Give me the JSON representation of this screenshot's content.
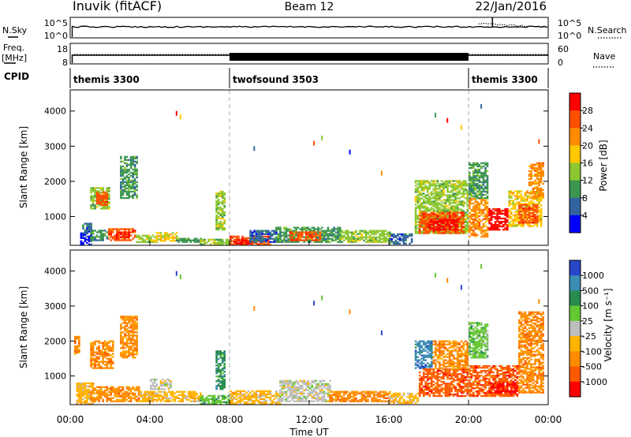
{
  "header": {
    "title": "Inuvik (fitACF)",
    "beam": "Beam 12",
    "date": "22/Jan/2016"
  },
  "top_panels": {
    "nsky_label": "N.Sky",
    "nsky_ticks": [
      "10^5",
      "10^0"
    ],
    "nsearch_label": "N.Search",
    "nsearch_ticks": [
      "10^5",
      "10^0"
    ],
    "freq_label": "Freq.",
    "freq_unit": "[MHz]",
    "freq_ticks": [
      "18",
      "8"
    ],
    "nave_label": "Nave",
    "nave_ticks": [
      "60",
      "0"
    ],
    "cpid_label": "CPID",
    "cpid_segments": [
      {
        "name": "themis 3300",
        "start": 0,
        "end": 8
      },
      {
        "name": "twofsound 3503",
        "start": 8,
        "end": 20
      },
      {
        "name": "themis 3300",
        "start": 20,
        "end": 24
      }
    ]
  },
  "x_axis": {
    "label": "Time UT",
    "ticks": [
      "00:00",
      "04:00",
      "08:00",
      "12:00",
      "16:00",
      "20:00",
      "00:00"
    ]
  },
  "power_panel": {
    "ylabel": "Slant Range [km]",
    "yticks": [
      "1000",
      "2000",
      "3000",
      "4000"
    ],
    "colorbar_label": "Power [dB]",
    "colorbar_ticks": [
      "28",
      "24",
      "20",
      "16",
      "12",
      "8",
      "4"
    ],
    "colors": [
      "#ff0000",
      "#ff5000",
      "#ff8c00",
      "#ffc800",
      "#8cc832",
      "#3c9650",
      "#3264a0",
      "#0000ff"
    ]
  },
  "velocity_panel": {
    "ylabel": "Slant Range [km]",
    "yticks": [
      "1000",
      "2000",
      "3000",
      "4000"
    ],
    "colorbar_label": "Velocity [m s⁻¹]",
    "colorbar_ticks": [
      "1000",
      "500",
      "100",
      "25",
      "-25",
      "-100",
      "-500",
      "-1000"
    ],
    "colors": [
      "#2846c8",
      "#3c8cb4",
      "#288c50",
      "#64c832",
      "#bebebe",
      "#ffb400",
      "#ff8c00",
      "#ff5a00",
      "#ff0000"
    ]
  },
  "chart_data": {
    "type": "heatmap",
    "title": "Inuvik (fitACF)",
    "xlabel": "Time UT",
    "ylabel": "Slant Range [km]",
    "xlim": [
      0,
      24
    ],
    "ylim": [
      180,
      4600
    ],
    "vertical_lines_hours": [
      8,
      20
    ],
    "power_patches": [
      {
        "t0": 0.5,
        "t1": 1.0,
        "r0": 180,
        "r1": 500,
        "c": 7
      },
      {
        "t0": 0.6,
        "t1": 1.0,
        "r0": 500,
        "r1": 800,
        "c": 6
      },
      {
        "t0": 1.0,
        "t1": 1.9,
        "r0": 300,
        "r1": 600,
        "c": 5
      },
      {
        "t0": 1.9,
        "t1": 3.3,
        "r0": 300,
        "r1": 650,
        "c": 1
      },
      {
        "t0": 2.2,
        "t1": 3.0,
        "r0": 380,
        "r1": 560,
        "c": 0
      },
      {
        "t0": 3.3,
        "t1": 4.3,
        "r0": 250,
        "r1": 450,
        "c": 4
      },
      {
        "t0": 4.3,
        "t1": 5.3,
        "r0": 280,
        "r1": 520,
        "c": 3
      },
      {
        "t0": 5.3,
        "t1": 6.5,
        "r0": 250,
        "r1": 380,
        "c": 5
      },
      {
        "t0": 6.5,
        "t1": 8.0,
        "r0": 180,
        "r1": 350,
        "c": 4
      },
      {
        "t0": 7.3,
        "t1": 7.7,
        "r0": 600,
        "r1": 1700,
        "c": 4
      },
      {
        "t0": 8.0,
        "t1": 10.0,
        "r0": 180,
        "r1": 420,
        "c": 1
      },
      {
        "t0": 8.2,
        "t1": 9.0,
        "r0": 200,
        "r1": 330,
        "c": 0
      },
      {
        "t0": 9.0,
        "t1": 10.5,
        "r0": 250,
        "r1": 600,
        "c": 6
      },
      {
        "t0": 10.3,
        "t1": 13.5,
        "r0": 250,
        "r1": 700,
        "c": 5
      },
      {
        "t0": 11.0,
        "t1": 12.5,
        "r0": 300,
        "r1": 550,
        "c": 1
      },
      {
        "t0": 13.5,
        "t1": 16.0,
        "r0": 250,
        "r1": 600,
        "c": 4
      },
      {
        "t0": 16.0,
        "t1": 17.2,
        "r0": 200,
        "r1": 500,
        "c": 6
      },
      {
        "t0": 1.0,
        "t1": 2.0,
        "r0": 1200,
        "r1": 1800,
        "c": 4
      },
      {
        "t0": 1.3,
        "t1": 1.9,
        "r0": 1300,
        "r1": 1700,
        "c": 1
      },
      {
        "t0": 2.5,
        "t1": 3.4,
        "r0": 1500,
        "r1": 2700,
        "c": 5
      },
      {
        "t0": 17.3,
        "t1": 20.0,
        "r0": 500,
        "r1": 2000,
        "c": 4
      },
      {
        "t0": 17.5,
        "t1": 19.8,
        "r0": 500,
        "r1": 1100,
        "c": 1
      },
      {
        "t0": 18.0,
        "t1": 19.5,
        "r0": 600,
        "r1": 900,
        "c": 0
      },
      {
        "t0": 20.0,
        "t1": 21.0,
        "r0": 400,
        "r1": 1500,
        "c": 2
      },
      {
        "t0": 20.0,
        "t1": 21.0,
        "r0": 1500,
        "r1": 2500,
        "c": 5
      },
      {
        "t0": 21.0,
        "t1": 22.0,
        "r0": 600,
        "r1": 1200,
        "c": 0
      },
      {
        "t0": 22.0,
        "t1": 23.7,
        "r0": 700,
        "r1": 1700,
        "c": 3
      },
      {
        "t0": 22.5,
        "t1": 23.5,
        "r0": 800,
        "r1": 1300,
        "c": 1
      },
      {
        "t0": 23.0,
        "t1": 23.8,
        "r0": 1500,
        "r1": 2500,
        "c": 2
      }
    ],
    "velocity_patches": [
      {
        "t0": 0.3,
        "t1": 1.2,
        "r0": 180,
        "r1": 800,
        "c": 5
      },
      {
        "t0": 1.0,
        "t1": 3.5,
        "r0": 250,
        "r1": 700,
        "c": 6
      },
      {
        "t0": 3.5,
        "t1": 6.5,
        "r0": 250,
        "r1": 550,
        "c": 5
      },
      {
        "t0": 4.0,
        "t1": 5.0,
        "r0": 600,
        "r1": 900,
        "c": 4
      },
      {
        "t0": 6.5,
        "t1": 8.0,
        "r0": 180,
        "r1": 450,
        "c": 3
      },
      {
        "t0": 7.3,
        "t1": 7.7,
        "r0": 600,
        "r1": 1700,
        "c": 2
      },
      {
        "t0": 8.0,
        "t1": 10.5,
        "r0": 180,
        "r1": 550,
        "c": 5
      },
      {
        "t0": 10.5,
        "t1": 13.0,
        "r0": 250,
        "r1": 850,
        "c": 4
      },
      {
        "t0": 13.0,
        "t1": 16.0,
        "r0": 250,
        "r1": 550,
        "c": 6
      },
      {
        "t0": 16.0,
        "t1": 17.5,
        "r0": 200,
        "r1": 500,
        "c": 5
      },
      {
        "t0": 0.2,
        "t1": 0.5,
        "r0": 1600,
        "r1": 2100,
        "c": 6
      },
      {
        "t0": 1.0,
        "t1": 2.2,
        "r0": 1200,
        "r1": 2000,
        "c": 6
      },
      {
        "t0": 2.5,
        "t1": 3.4,
        "r0": 1500,
        "r1": 2700,
        "c": 6
      },
      {
        "t0": 17.3,
        "t1": 18.2,
        "r0": 1200,
        "r1": 2000,
        "c": 1
      },
      {
        "t0": 17.5,
        "t1": 20.0,
        "r0": 400,
        "r1": 1200,
        "c": 7
      },
      {
        "t0": 18.2,
        "t1": 20.0,
        "r0": 1200,
        "r1": 2000,
        "c": 6
      },
      {
        "t0": 20.0,
        "t1": 21.0,
        "r0": 1500,
        "r1": 2500,
        "c": 3
      },
      {
        "t0": 20.0,
        "t1": 22.5,
        "r0": 400,
        "r1": 1300,
        "c": 7
      },
      {
        "t0": 21.0,
        "t1": 22.5,
        "r0": 500,
        "r1": 800,
        "c": 8
      },
      {
        "t0": 22.5,
        "t1": 23.8,
        "r0": 500,
        "r1": 2800,
        "c": 6
      }
    ],
    "scattered_echoes": [
      {
        "t": 5.3,
        "r": 4000
      },
      {
        "t": 5.5,
        "r": 3900
      },
      {
        "t": 9.2,
        "r": 3000
      },
      {
        "t": 12.2,
        "r": 3150
      },
      {
        "t": 12.6,
        "r": 3300
      },
      {
        "t": 14.0,
        "r": 2900
      },
      {
        "t": 15.6,
        "r": 2300
      },
      {
        "t": 18.3,
        "r": 3950
      },
      {
        "t": 18.9,
        "r": 3800
      },
      {
        "t": 19.6,
        "r": 3600
      },
      {
        "t": 20.6,
        "r": 4200
      },
      {
        "t": 23.5,
        "r": 3200
      }
    ]
  }
}
